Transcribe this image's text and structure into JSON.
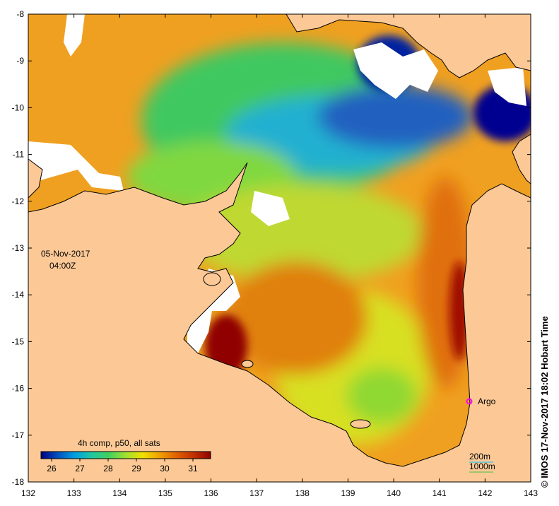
{
  "map": {
    "date": "05-Nov-2017",
    "time": "04:00Z",
    "credit": "© IMOS 17-Nov-2017 18:02 Hobart Time",
    "x_ticks": [
      "132",
      "133",
      "134",
      "135",
      "136",
      "137",
      "138",
      "139",
      "140",
      "141",
      "142",
      "143"
    ],
    "y_ticks": [
      "-8",
      "-9",
      "-10",
      "-11",
      "-12",
      "-13",
      "-14",
      "-15",
      "-16",
      "-17",
      "-18"
    ],
    "colorbar": {
      "title": "4h comp, p50, all sats",
      "ticks": [
        "26",
        "27",
        "28",
        "29",
        "30",
        "31"
      ],
      "colors": [
        "#000080",
        "#0050c0",
        "#00a0e0",
        "#20c8a0",
        "#40d060",
        "#a0e030",
        "#f0e000",
        "#f0a000",
        "#e06000",
        "#c03000",
        "#900000"
      ]
    },
    "marker_label": "Argo",
    "marker_color": "#ff00ff",
    "isobath_labels": [
      "200m",
      "1000m"
    ],
    "colors": {
      "land": "#fcc996",
      "nodata": "#ffffff",
      "coast": "#000000"
    }
  }
}
